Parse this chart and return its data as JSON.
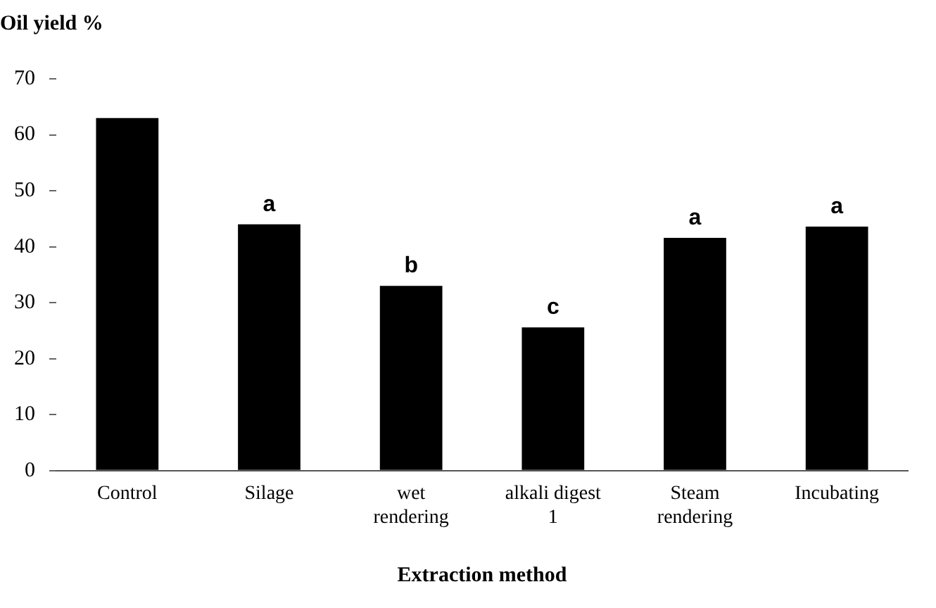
{
  "chart_data": {
    "type": "bar",
    "title": "Oil yield %",
    "xlabel": "Extraction method",
    "categories": [
      "Control",
      "Silage",
      "wet\nrendering",
      "alkali digest\n1",
      "Steam\nrendering",
      "Incubating"
    ],
    "values": [
      63,
      44,
      33,
      25.6,
      41.6,
      43.6
    ],
    "color": "#000000",
    "ylim": [
      0,
      70
    ],
    "yticks": [
      0,
      10,
      20,
      30,
      40,
      50,
      60,
      70
    ],
    "grid": false,
    "legend": false,
    "annotations": [
      {
        "text": "a",
        "x": "Silage",
        "y": 44
      },
      {
        "text": "b",
        "x": "wet\nrendering",
        "y": 33
      },
      {
        "text": "c",
        "x": "alkali digest\n1",
        "y": 25.6
      },
      {
        "text": "a",
        "x": "Steam\nrendering",
        "y": 41.6
      },
      {
        "text": "a",
        "x": "Incubating",
        "y": 43.6
      }
    ]
  }
}
